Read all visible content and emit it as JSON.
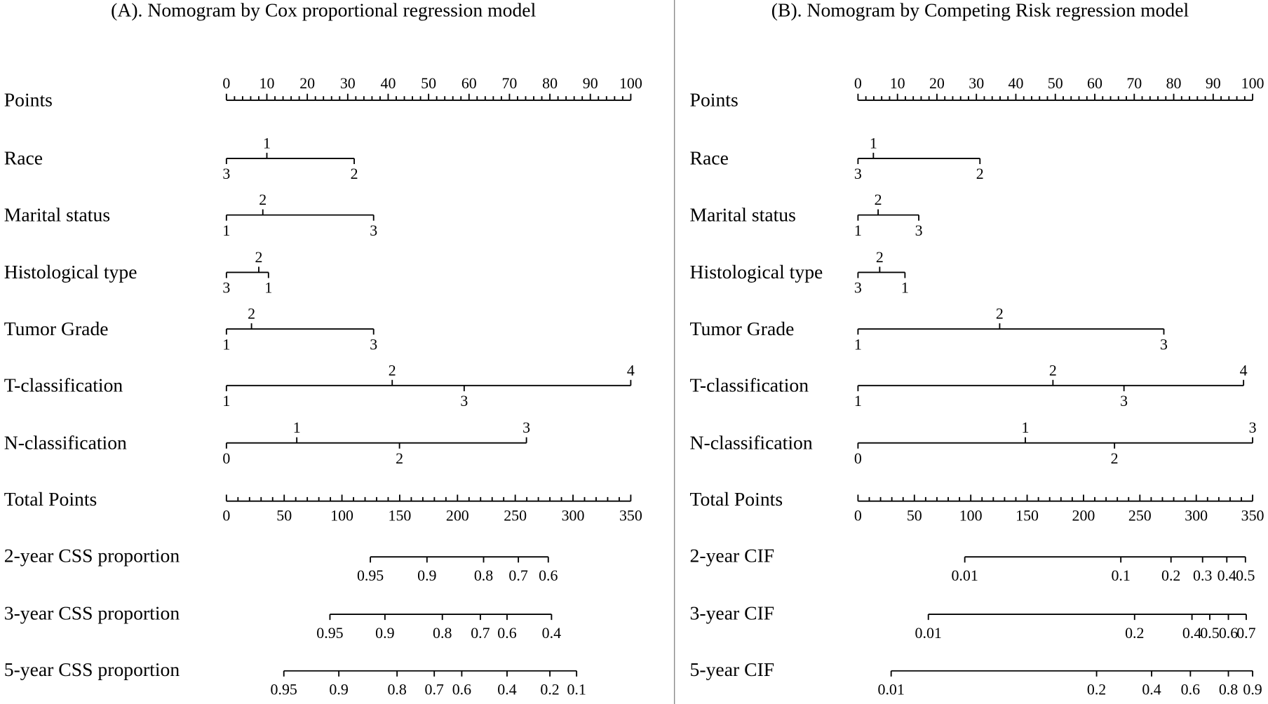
{
  "chart_data": [
    {
      "type": "nomogram",
      "title": "(A). Nomogram by Cox proportional regression model",
      "points_axis": {
        "label": "Points",
        "lim": [
          0,
          100
        ],
        "ticks": [
          0,
          10,
          20,
          30,
          40,
          50,
          60,
          70,
          80,
          90,
          100
        ],
        "minor_ticks": [
          2,
          4,
          6,
          8,
          12,
          14,
          16,
          18,
          22,
          24,
          26,
          28,
          32,
          34,
          36,
          38,
          42,
          44,
          46,
          48,
          52,
          54,
          56,
          58,
          62,
          64,
          66,
          68,
          72,
          74,
          76,
          78,
          82,
          84,
          86,
          88,
          92,
          94,
          96,
          98
        ]
      },
      "variables": [
        {
          "label": "Race",
          "ticks": [
            {
              "value": 0,
              "label": "3"
            },
            {
              "value": 10,
              "label": "1"
            },
            {
              "value": 31.6,
              "label": "2"
            }
          ]
        },
        {
          "label": "Marital status",
          "ticks": [
            {
              "value": 0,
              "label": "1"
            },
            {
              "value": 9,
              "label": "2"
            },
            {
              "value": 36.4,
              "label": "3"
            }
          ]
        },
        {
          "label": "Histological type",
          "ticks": [
            {
              "value": 0,
              "label": "3"
            },
            {
              "value": 8,
              "label": "2"
            },
            {
              "value": 10.4,
              "label": "1"
            }
          ]
        },
        {
          "label": "Tumor Grade",
          "ticks": [
            {
              "value": 0,
              "label": "1"
            },
            {
              "value": 6.2,
              "label": "2"
            },
            {
              "value": 36.4,
              "label": "3"
            }
          ]
        },
        {
          "label": "T-classification",
          "ticks": [
            {
              "value": 0,
              "label": "1"
            },
            {
              "value": 41,
              "label": "2"
            },
            {
              "value": 58.8,
              "label": "3"
            },
            {
              "value": 100,
              "label": "4"
            }
          ]
        },
        {
          "label": "N-classification",
          "ticks": [
            {
              "value": 0,
              "label": "0"
            },
            {
              "value": 17.4,
              "label": "1"
            },
            {
              "value": 42.8,
              "label": "2"
            },
            {
              "value": 74.2,
              "label": "3"
            }
          ]
        }
      ],
      "total_points_axis": {
        "label": "Total Points",
        "lim": [
          0,
          350
        ],
        "ticks": [
          0,
          50,
          100,
          150,
          200,
          250,
          300,
          350
        ],
        "minor_ticks": [
          10,
          20,
          30,
          40,
          60,
          70,
          80,
          90,
          110,
          120,
          130,
          140,
          160,
          170,
          180,
          190,
          210,
          220,
          230,
          240,
          260,
          270,
          280,
          290,
          310,
          320,
          330,
          340
        ]
      },
      "outcomes": [
        {
          "label": "2-year CSS proportion",
          "ticks": [
            {
              "value": 124.6,
              "label": "0.95"
            },
            {
              "value": 173.6,
              "label": "0.9"
            },
            {
              "value": 222.6,
              "label": "0.8"
            },
            {
              "value": 252.7,
              "label": "0.7"
            },
            {
              "value": 278.6,
              "label": "0.6"
            }
          ]
        },
        {
          "label": "3-year CSS proportion",
          "ticks": [
            {
              "value": 89.6,
              "label": "0.95"
            },
            {
              "value": 137.2,
              "label": "0.9"
            },
            {
              "value": 186.9,
              "label": "0.8"
            },
            {
              "value": 219.8,
              "label": "0.7"
            },
            {
              "value": 242.9,
              "label": "0.6"
            },
            {
              "value": 281.4,
              "label": "0.4"
            }
          ]
        },
        {
          "label": "5-year CSS proportion",
          "ticks": [
            {
              "value": 49.7,
              "label": "0.95"
            },
            {
              "value": 97.3,
              "label": "0.9"
            },
            {
              "value": 147.7,
              "label": "0.8"
            },
            {
              "value": 179.9,
              "label": "0.7"
            },
            {
              "value": 203.7,
              "label": "0.6"
            },
            {
              "value": 242.9,
              "label": "0.4"
            },
            {
              "value": 280,
              "label": "0.2"
            },
            {
              "value": 303.1,
              "label": "0.1"
            }
          ]
        }
      ]
    },
    {
      "type": "nomogram",
      "title": "(B). Nomogram by Competing Risk regression model",
      "points_axis": {
        "label": "Points",
        "lim": [
          0,
          100
        ],
        "ticks": [
          0,
          10,
          20,
          30,
          40,
          50,
          60,
          70,
          80,
          90,
          100
        ],
        "minor_ticks": [
          2,
          4,
          6,
          8,
          12,
          14,
          16,
          18,
          22,
          24,
          26,
          28,
          32,
          34,
          36,
          38,
          42,
          44,
          46,
          48,
          52,
          54,
          56,
          58,
          62,
          64,
          66,
          68,
          72,
          74,
          76,
          78,
          82,
          84,
          86,
          88,
          92,
          94,
          96,
          98
        ]
      },
      "variables": [
        {
          "label": "Race",
          "ticks": [
            {
              "value": 0,
              "label": "3"
            },
            {
              "value": 3.9,
              "label": "1"
            },
            {
              "value": 30.9,
              "label": "2"
            }
          ]
        },
        {
          "label": "Marital status",
          "ticks": [
            {
              "value": 0,
              "label": "1"
            },
            {
              "value": 5.1,
              "label": "2"
            },
            {
              "value": 15.4,
              "label": "3"
            }
          ]
        },
        {
          "label": "Histological type",
          "ticks": [
            {
              "value": 0,
              "label": "3"
            },
            {
              "value": 5.5,
              "label": "2"
            },
            {
              "value": 11.9,
              "label": "1"
            }
          ]
        },
        {
          "label": "Tumor Grade",
          "ticks": [
            {
              "value": 0,
              "label": "1"
            },
            {
              "value": 35.9,
              "label": "2"
            },
            {
              "value": 77.5,
              "label": "3"
            }
          ]
        },
        {
          "label": "T-classification",
          "ticks": [
            {
              "value": 0,
              "label": "1"
            },
            {
              "value": 49.4,
              "label": "2"
            },
            {
              "value": 67.4,
              "label": "3"
            },
            {
              "value": 97.7,
              "label": "4"
            }
          ]
        },
        {
          "label": "N-classification",
          "ticks": [
            {
              "value": 0,
              "label": "0"
            },
            {
              "value": 42.4,
              "label": "1"
            },
            {
              "value": 65,
              "label": "2"
            },
            {
              "value": 100,
              "label": "3"
            }
          ]
        }
      ],
      "total_points_axis": {
        "label": "Total Points",
        "lim": [
          0,
          350
        ],
        "ticks": [
          0,
          50,
          100,
          150,
          200,
          250,
          300,
          350
        ],
        "minor_ticks": [
          10,
          20,
          30,
          40,
          60,
          70,
          80,
          90,
          110,
          120,
          130,
          140,
          160,
          170,
          180,
          190,
          210,
          220,
          230,
          240,
          260,
          270,
          280,
          290,
          310,
          320,
          330,
          340
        ]
      },
      "outcomes": [
        {
          "label": "2-year CIF",
          "ticks": [
            {
              "value": 94.7,
              "label": "0.01"
            },
            {
              "value": 233.1,
              "label": "0.1"
            },
            {
              "value": 277.6,
              "label": "0.2"
            },
            {
              "value": 305.6,
              "label": "0.3"
            },
            {
              "value": 327.1,
              "label": "0.4"
            },
            {
              "value": 343.6,
              "label": "0.5"
            }
          ]
        },
        {
          "label": "3-year CIF",
          "ticks": [
            {
              "value": 62.4,
              "label": "0.01"
            },
            {
              "value": 245.3,
              "label": "0.2"
            },
            {
              "value": 296.2,
              "label": "0.4"
            },
            {
              "value": 312,
              "label": "0.5"
            },
            {
              "value": 328.5,
              "label": "0.6"
            },
            {
              "value": 344.3,
              "label": "0.7"
            }
          ]
        },
        {
          "label": "5-year CIF",
          "ticks": [
            {
              "value": 29.4,
              "label": "0.01"
            },
            {
              "value": 211.6,
              "label": "0.2"
            },
            {
              "value": 260.4,
              "label": "0.4"
            },
            {
              "value": 294.8,
              "label": "0.6"
            },
            {
              "value": 328.5,
              "label": "0.8"
            },
            {
              "value": 350,
              "label": "0.9"
            }
          ]
        }
      ]
    }
  ]
}
